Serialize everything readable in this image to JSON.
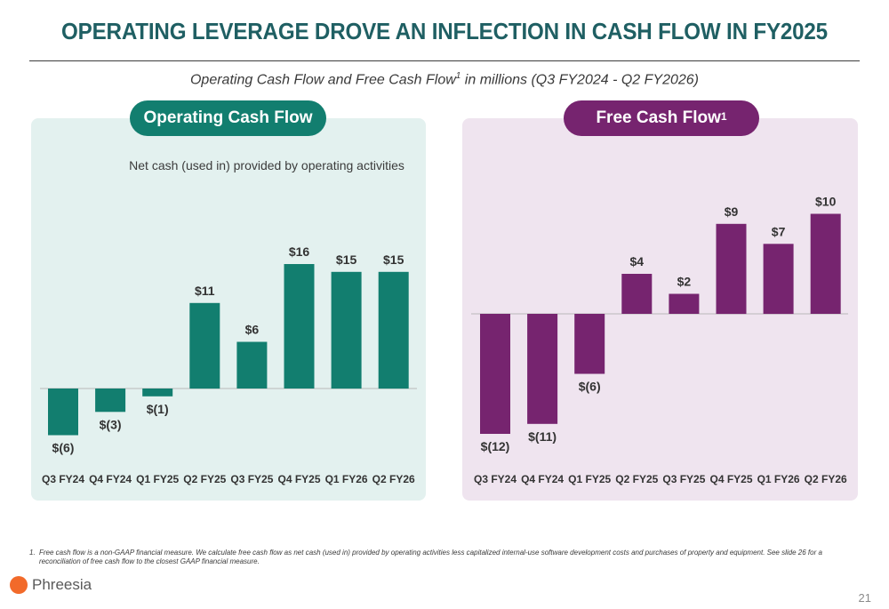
{
  "title": "OPERATING LEVERAGE DROVE AN INFLECTION IN CASH FLOW IN FY2025",
  "subtitle": {
    "before": "Operating Cash Flow and Free Cash Flow",
    "sup": "1",
    "after": " in millions (Q3 FY2024 - Q2 FY2026)"
  },
  "panels": {
    "ocf": {
      "pill_label": "Operating Cash Flow",
      "note": "Net cash (used in) provided by operating activities",
      "background": "#e3f1ef",
      "accent": "#127e6f"
    },
    "fcf": {
      "pill_label": "Free Cash Flow",
      "pill_sup": "1",
      "background": "#efe4ef",
      "accent": "#76246f"
    }
  },
  "chart_data": [
    {
      "type": "bar",
      "name": "Operating Cash Flow",
      "categories": [
        "Q3 FY24",
        "Q4 FY24",
        "Q1 FY25",
        "Q2 FY25",
        "Q3 FY25",
        "Q4 FY25",
        "Q1 FY26",
        "Q2 FY26"
      ],
      "values": [
        -6,
        -3,
        -1,
        11,
        6,
        16,
        15,
        15
      ],
      "labels": [
        "$(6)",
        "$(3)",
        "$(1)",
        "$11",
        "$6",
        "$16",
        "$15",
        "$15"
      ],
      "color": "#127e6f",
      "unit": "$ millions"
    },
    {
      "type": "bar",
      "name": "Free Cash Flow",
      "categories": [
        "Q3 FY24",
        "Q4 FY24",
        "Q1 FY25",
        "Q2 FY25",
        "Q3 FY25",
        "Q4 FY25",
        "Q1 FY26",
        "Q2 FY26"
      ],
      "values": [
        -12,
        -11,
        -6,
        4,
        2,
        9,
        7,
        10
      ],
      "labels": [
        "$(12)",
        "$(11)",
        "$(6)",
        "$4",
        "$2",
        "$9",
        "$7",
        "$10"
      ],
      "color": "#76246f",
      "unit": "$ millions"
    }
  ],
  "footnote": {
    "number": "1.",
    "text": "Free cash flow is a non-GAAP financial measure. We calculate free cash flow as net cash (used in) provided by operating activities less capitalized internal-use software development costs and purchases of property and equipment. See slide 26 for a reconciliation of free cash flow to the closest GAAP financial measure."
  },
  "logo": {
    "text": "Phreesia",
    "icon": "phreesia-logo-dot",
    "color": "#f26a2a"
  },
  "page_number": "21"
}
